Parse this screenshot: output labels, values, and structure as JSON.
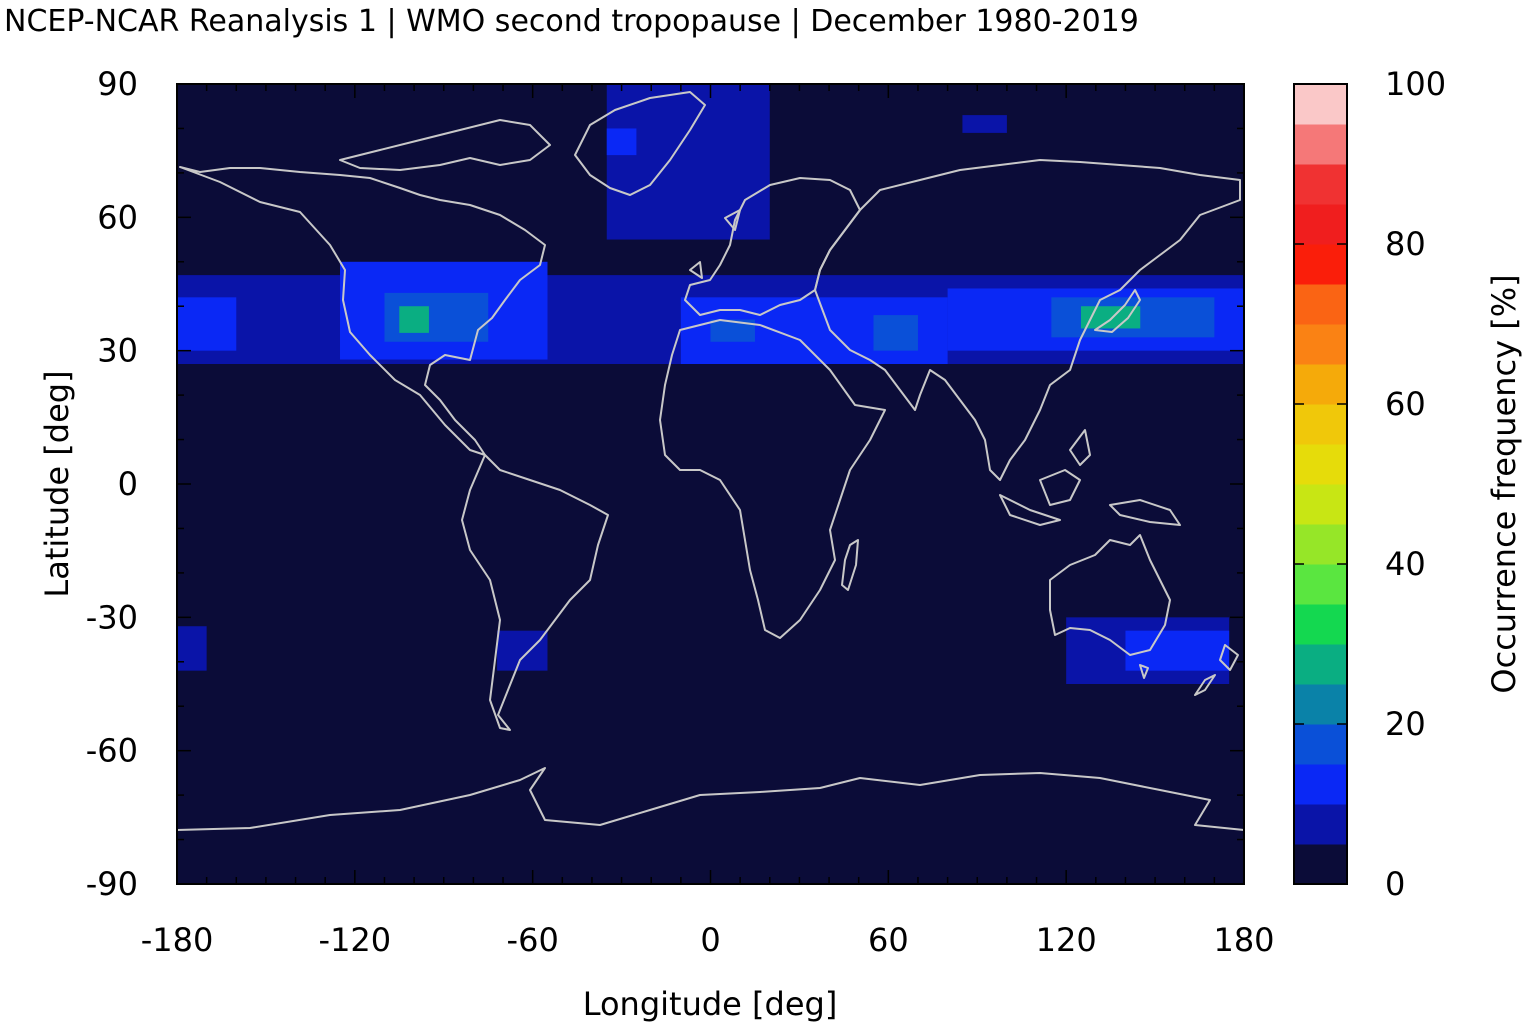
{
  "title": "NCEP-NCAR Reanalysis 1 | WMO second tropopause | December 1980-2019",
  "colors": {
    "background_ocean": "#0b0c38",
    "coastline": "#c8c8c8",
    "colormap": [
      "#0b0c38",
      "#0a14a8",
      "#0a28f5",
      "#0a50d8",
      "#0a82a8",
      "#0aae82",
      "#14d850",
      "#5ae640",
      "#96e628",
      "#c8e614",
      "#e6dc0a",
      "#f0c80a",
      "#f5aa0a",
      "#fa8214",
      "#fa6414",
      "#fa1e0a",
      "#f01e1e",
      "#f03232",
      "#f57878",
      "#fac8c8"
    ],
    "band_strong": "#0a28f5",
    "band_weak": "#0a14a8",
    "band_teal": "#0a50d8",
    "band_green": "#0aae82"
  },
  "chart_data": {
    "type": "heatmap",
    "xlabel": "Longitude [deg]",
    "ylabel": "Latitude [deg]",
    "xlim": [
      -180,
      180
    ],
    "ylim": [
      -90,
      90
    ],
    "x_ticks": [
      -180,
      -120,
      -60,
      0,
      60,
      120,
      180
    ],
    "x_tick_labels": [
      "-180",
      "-120",
      "-60",
      "0",
      "60",
      "120",
      "180"
    ],
    "y_ticks": [
      90,
      60,
      30,
      0,
      -30,
      -60,
      -90
    ],
    "y_tick_labels": [
      "90",
      "60",
      "30",
      "0",
      "-30",
      "-60",
      "-90"
    ],
    "colorbar": {
      "label": "Occurrence frequency [%]",
      "range": [
        0,
        100
      ],
      "ticks": [
        0,
        20,
        40,
        60,
        80,
        100
      ],
      "tick_labels": [
        "0",
        "20",
        "40",
        "60",
        "80",
        "100"
      ],
      "levels": 20
    },
    "regions": [
      {
        "lon": [
          -180,
          180
        ],
        "lat": [
          27,
          47
        ],
        "level": 1
      },
      {
        "lon": [
          -180,
          -160
        ],
        "lat": [
          30,
          42
        ],
        "level": 2
      },
      {
        "lon": [
          -125,
          -55
        ],
        "lat": [
          28,
          50
        ],
        "level": 2
      },
      {
        "lon": [
          -110,
          -75
        ],
        "lat": [
          32,
          43
        ],
        "level": 3
      },
      {
        "lon": [
          -105,
          -95
        ],
        "lat": [
          34,
          40
        ],
        "level": 5
      },
      {
        "lon": [
          -35,
          20
        ],
        "lat": [
          55,
          90
        ],
        "level": 1
      },
      {
        "lon": [
          -35,
          -25
        ],
        "lat": [
          74,
          80
        ],
        "level": 2
      },
      {
        "lon": [
          -10,
          80
        ],
        "lat": [
          27,
          42
        ],
        "level": 2
      },
      {
        "lon": [
          0,
          15
        ],
        "lat": [
          32,
          37
        ],
        "level": 3
      },
      {
        "lon": [
          55,
          70
        ],
        "lat": [
          30,
          38
        ],
        "level": 3
      },
      {
        "lon": [
          80,
          180
        ],
        "lat": [
          30,
          44
        ],
        "level": 2
      },
      {
        "lon": [
          115,
          170
        ],
        "lat": [
          33,
          42
        ],
        "level": 3
      },
      {
        "lon": [
          125,
          145
        ],
        "lat": [
          35,
          40
        ],
        "level": 5
      },
      {
        "lon": [
          85,
          100
        ],
        "lat": [
          79,
          83
        ],
        "level": 1
      },
      {
        "lon": [
          120,
          175
        ],
        "lat": [
          -45,
          -30
        ],
        "level": 1
      },
      {
        "lon": [
          140,
          175
        ],
        "lat": [
          -42,
          -33
        ],
        "level": 2
      },
      {
        "lon": [
          -180,
          -170
        ],
        "lat": [
          -42,
          -32
        ],
        "level": 1
      },
      {
        "lon": [
          -72,
          -55
        ],
        "lat": [
          -42,
          -33
        ],
        "level": 1
      }
    ]
  }
}
